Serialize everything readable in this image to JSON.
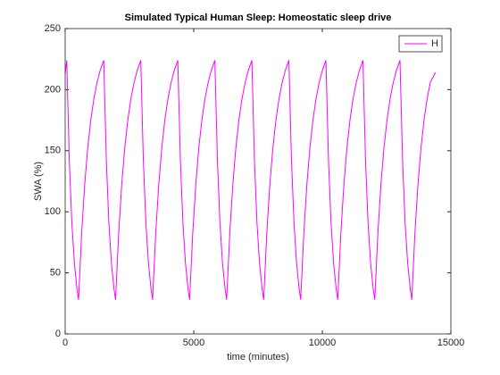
{
  "chart_data": {
    "type": "line",
    "title": "Simulated Typical Human Sleep: Homeostatic sleep drive",
    "xlabel": "time (minutes)",
    "ylabel": "SWA (%)",
    "xlim": [
      0,
      15000
    ],
    "xticks": [
      0,
      5000,
      10000,
      15000
    ],
    "ylim": [
      0,
      250
    ],
    "yticks": [
      0,
      50,
      100,
      150,
      200,
      250
    ],
    "legend": "northeast",
    "x": [
      0,
      60,
      160,
      260,
      360,
      460,
      520,
      640,
      760,
      880,
      1000,
      1120,
      1240,
      1360,
      1500,
      1600,
      1700,
      1800,
      1900,
      1960,
      2080,
      2200,
      2320,
      2440,
      2560,
      2680,
      2800,
      2940,
      3040,
      3140,
      3240,
      3340,
      3400,
      3520,
      3640,
      3760,
      3880,
      4000,
      4120,
      4240,
      4380,
      4480,
      4580,
      4680,
      4780,
      4840,
      4960,
      5080,
      5200,
      5320,
      5440,
      5560,
      5680,
      5820,
      5920,
      6020,
      6120,
      6220,
      6280,
      6400,
      6520,
      6640,
      6760,
      6880,
      7000,
      7120,
      7260,
      7360,
      7460,
      7560,
      7660,
      7720,
      7840,
      7960,
      8080,
      8200,
      8320,
      8440,
      8560,
      8700,
      8800,
      8900,
      9000,
      9100,
      9160,
      9280,
      9400,
      9520,
      9640,
      9760,
      9880,
      10000,
      10140,
      10240,
      10340,
      10440,
      10540,
      10600,
      10720,
      10840,
      10960,
      11080,
      11200,
      11320,
      11440,
      11580,
      11680,
      11780,
      11880,
      11980,
      12040,
      12160,
      12280,
      12400,
      12520,
      12640,
      12760,
      12880,
      13020,
      13120,
      13220,
      13320,
      13420,
      13480,
      13600,
      13720,
      13840,
      13960,
      14080,
      14200,
      14400
    ],
    "series": [
      {
        "name": "H",
        "color": "#ff00ff",
        "values": [
          213,
          224,
          142.5,
          90.6,
          57.6,
          36.7,
          28,
          82,
          122.5,
          152.9,
          175.8,
          193,
          205.9,
          215.6,
          224,
          142.5,
          90.6,
          57.6,
          36.7,
          28,
          82,
          122.5,
          152.9,
          175.8,
          193,
          205.9,
          215.6,
          224,
          142.5,
          90.6,
          57.6,
          36.7,
          28,
          82,
          122.5,
          152.9,
          175.8,
          193,
          205.9,
          215.6,
          224,
          142.5,
          90.6,
          57.6,
          36.7,
          28,
          82,
          122.5,
          152.9,
          175.8,
          193,
          205.9,
          215.6,
          224,
          142.5,
          90.6,
          57.6,
          36.7,
          28,
          82,
          122.5,
          152.9,
          175.8,
          193,
          205.9,
          215.6,
          224,
          142.5,
          90.6,
          57.6,
          36.7,
          28,
          82,
          122.5,
          152.9,
          175.8,
          193,
          205.9,
          215.6,
          224,
          142.5,
          90.6,
          57.6,
          36.7,
          28,
          82,
          122.5,
          152.9,
          175.8,
          193,
          205.9,
          215.6,
          224,
          142.5,
          90.6,
          57.6,
          36.7,
          28,
          82,
          122.5,
          152.9,
          175.8,
          193,
          205.9,
          215.6,
          224,
          142.5,
          90.6,
          57.6,
          36.7,
          28,
          82,
          122.5,
          152.9,
          175.8,
          193,
          205.9,
          215.6,
          224,
          142.5,
          90.6,
          57.6,
          36.7,
          28,
          82,
          122.5,
          152.9,
          175.8,
          193,
          205.9,
          214
        ]
      }
    ]
  }
}
